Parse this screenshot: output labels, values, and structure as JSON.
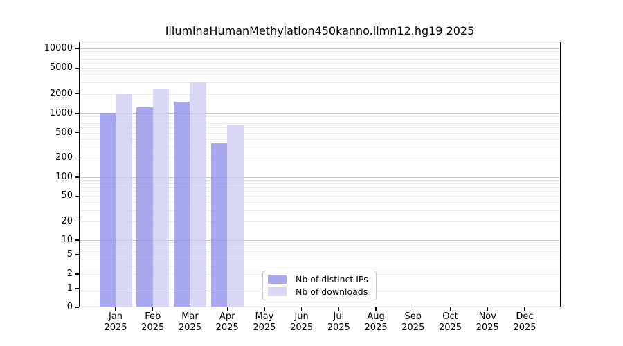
{
  "chart_data": {
    "type": "bar",
    "title": "IlluminaHumanMethylation450kanno.ilmn12.hg19 2025",
    "categories": [
      "Jan",
      "Feb",
      "Mar",
      "Apr",
      "May",
      "Jun",
      "Jul",
      "Aug",
      "Sep",
      "Oct",
      "Nov",
      "Dec"
    ],
    "category_year": "2025",
    "series": [
      {
        "name": "Nb of distinct IPs",
        "color": "#9090ec",
        "values": [
          1000,
          1250,
          1500,
          340,
          null,
          null,
          null,
          null,
          null,
          null,
          null,
          null
        ]
      },
      {
        "name": "Nb of downloads",
        "color": "#cecef5",
        "values": [
          2000,
          2400,
          3000,
          650,
          null,
          null,
          null,
          null,
          null,
          null,
          null,
          null
        ]
      }
    ],
    "bar_opacity": 0.78,
    "xlabel": "",
    "ylabel": "",
    "y_ticks": [
      0,
      1,
      2,
      5,
      10,
      20,
      50,
      100,
      200,
      500,
      1000,
      2000,
      5000,
      10000
    ],
    "y_scale": "log-with-zero (decades compressed below 1)",
    "ylim": [
      0,
      10000
    ],
    "grid": "horizontal, major at powers of 10 + faint minors at 2-9 multiples",
    "legend_position": "lower center inside plot",
    "colors": {
      "major_grid": "#c9c9c9",
      "minor_grid": "#ececec",
      "spine": "#000000",
      "text": "#000000",
      "background": "#ffffff"
    }
  }
}
